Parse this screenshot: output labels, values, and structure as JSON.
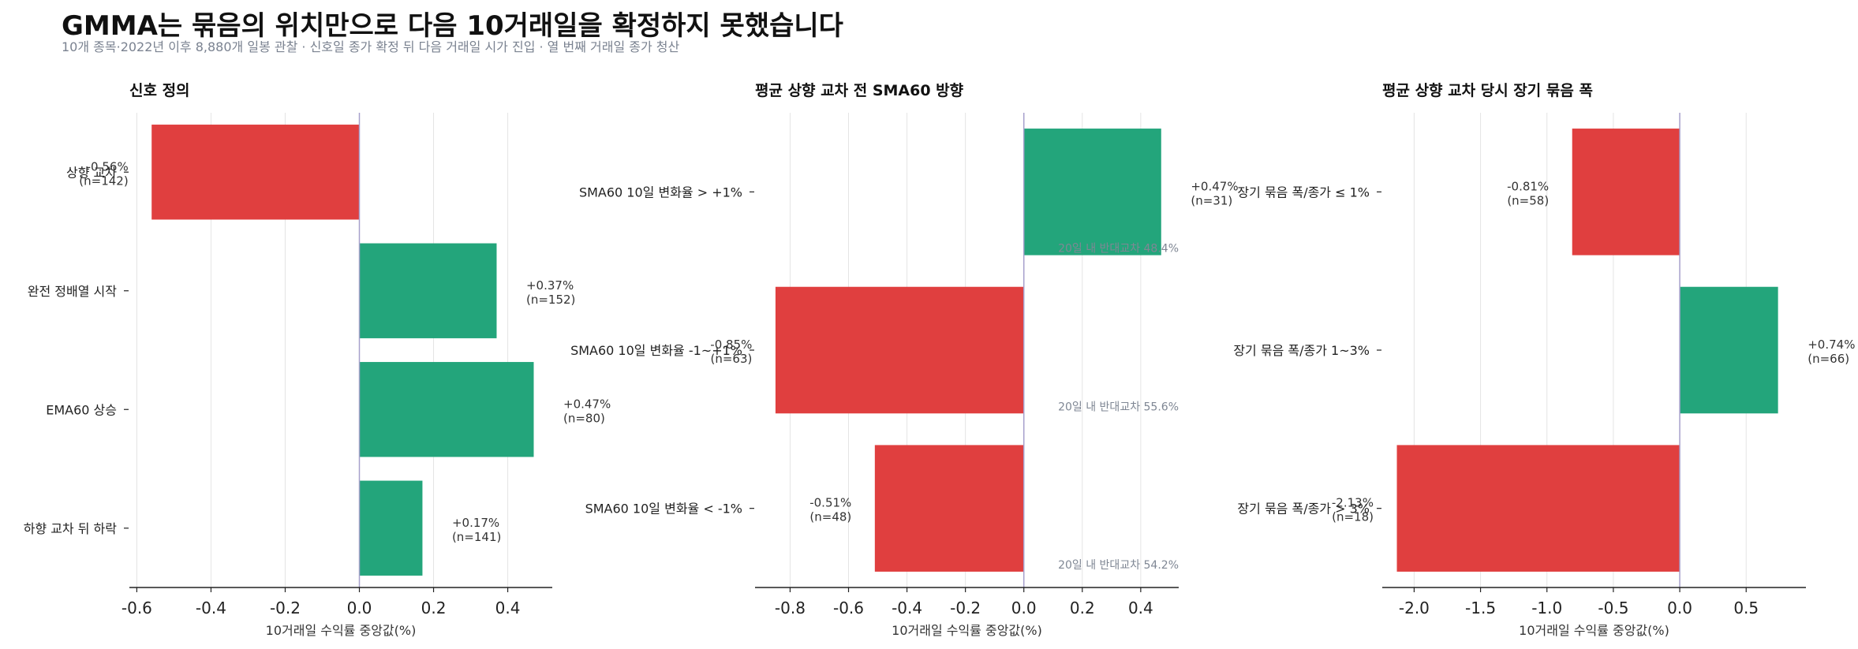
{
  "title": "GMMA는 묶음의 위치만으로 다음 10거래일을 확정하지 못했습니다",
  "subtitle": "10개 종목·2022년 이후 8,880개 일봉 관찰 · 신호일 종가 확정 뒤 다음 거래일 시가 진입 · 열 번째 거래일 종가 청산",
  "colors": {
    "positive": "#23a57b",
    "negative": "#e03f3f",
    "zero_line": "#a6a0cc",
    "grid": "#e4e4e4",
    "axis": "#222222"
  },
  "chart_data": [
    {
      "type": "bar",
      "orientation": "horizontal",
      "title": "신호 정의",
      "xlabel": "10거래일 수익률 중앙값(%)",
      "xlim": [
        -0.62,
        0.52
      ],
      "xticks": [
        -0.6,
        -0.4,
        -0.2,
        0.0,
        0.2,
        0.4
      ],
      "xtick_labels": [
        "-0.6",
        "-0.4",
        "-0.2",
        "0.0",
        "0.2",
        "0.4"
      ],
      "categories": [
        "상향 교차",
        "완전 정배열 시작",
        "EMA60 상승",
        "하향 교차 뒤 하락"
      ],
      "values": [
        -0.56,
        0.37,
        0.47,
        0.17
      ],
      "value_labels": [
        "-0.56%",
        "+0.37%",
        "+0.47%",
        "+0.17%"
      ],
      "n_labels": [
        "(n=142)",
        "(n=152)",
        "(n=80)",
        "(n=141)"
      ],
      "notes": [
        "",
        "",
        "",
        ""
      ]
    },
    {
      "type": "bar",
      "orientation": "horizontal",
      "title": "평균 상향 교차 전 SMA60 방향",
      "xlabel": "10거래일 수익률 중앙값(%)",
      "xlim": [
        -0.92,
        0.53
      ],
      "xticks": [
        -0.8,
        -0.6,
        -0.4,
        -0.2,
        0.0,
        0.2,
        0.4
      ],
      "xtick_labels": [
        "-0.8",
        "-0.6",
        "-0.4",
        "-0.2",
        "0.0",
        "0.2",
        "0.4"
      ],
      "categories": [
        "SMA60 10일 변화율 > +1%",
        "SMA60 10일 변화율 -1~+1%",
        "SMA60 10일 변화율 < -1%"
      ],
      "values": [
        0.47,
        -0.85,
        -0.51
      ],
      "value_labels": [
        "+0.47%",
        "-0.85%",
        "-0.51%"
      ],
      "n_labels": [
        "(n=31)",
        "(n=63)",
        "(n=48)"
      ],
      "notes": [
        "20일 내 반대교차 48.4%",
        "20일 내 반대교차 55.6%",
        "20일 내 반대교차 54.2%"
      ]
    },
    {
      "type": "bar",
      "orientation": "horizontal",
      "title": "평균 상향 교차 당시 장기 묶음 폭",
      "xlabel": "10거래일 수익률 중앙값(%)",
      "xlim": [
        -2.24,
        0.95
      ],
      "xticks": [
        -2.0,
        -1.5,
        -1.0,
        -0.5,
        0.0,
        0.5
      ],
      "xtick_labels": [
        "-2.0",
        "-1.5",
        "-1.0",
        "-0.5",
        "0.0",
        "0.5"
      ],
      "categories": [
        "장기 묶음 폭/종가 ≤ 1%",
        "장기 묶음 폭/종가 1~3%",
        "장기 묶음 폭/종가 > 3%"
      ],
      "values": [
        -0.81,
        0.74,
        -2.13
      ],
      "value_labels": [
        "-0.81%",
        "+0.74%",
        "-2.13%"
      ],
      "n_labels": [
        "(n=58)",
        "(n=66)",
        "(n=18)"
      ],
      "notes": [
        "",
        "",
        ""
      ]
    }
  ]
}
